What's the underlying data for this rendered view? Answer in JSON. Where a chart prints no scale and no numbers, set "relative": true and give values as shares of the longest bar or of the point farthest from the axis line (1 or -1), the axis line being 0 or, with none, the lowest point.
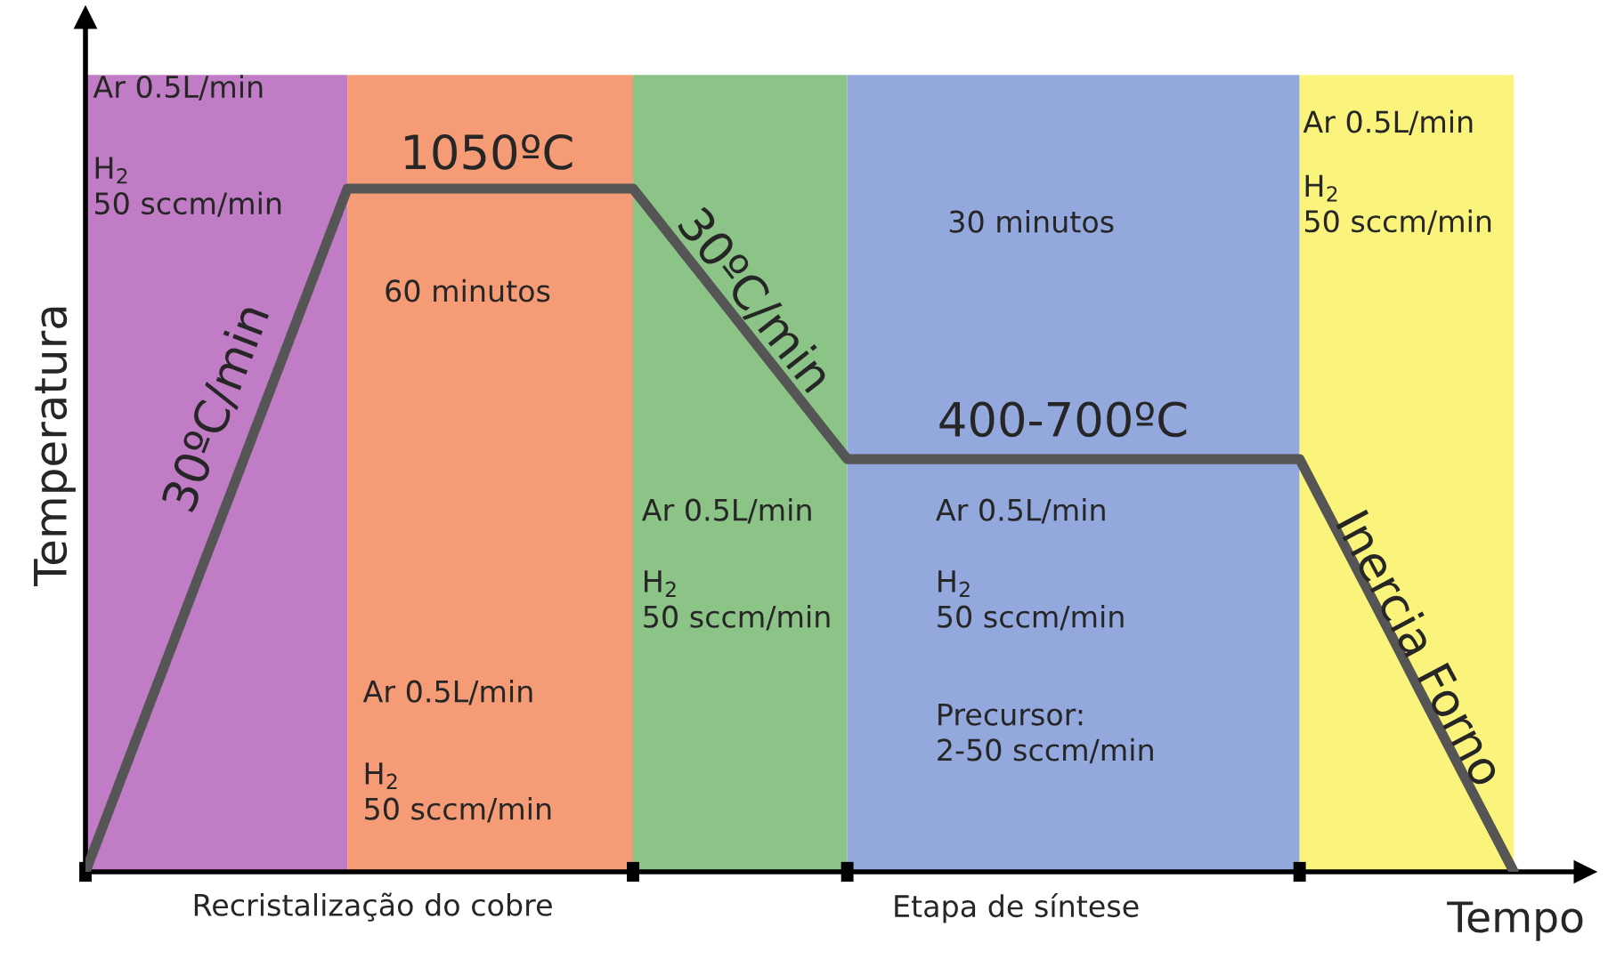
{
  "chart_data": {
    "type": "line",
    "relative": true,
    "xlabel": "Tempo",
    "ylabel": "Temperatura",
    "categories": [
      null,
      null,
      null,
      null,
      null,
      null,
      null,
      null,
      null,
      null,
      null,
      null,
      null,
      null,
      null,
      null,
      null,
      null,
      null,
      null,
      null,
      null,
      null,
      null,
      null,
      null,
      null,
      null,
      null,
      null,
      null,
      null,
      null,
      null,
      null,
      null,
      null,
      null,
      null,
      null,
      null,
      null,
      null,
      null,
      null,
      null,
      null,
      null,
      null,
      null,
      null,
      null,
      null,
      null,
      null,
      null,
      null,
      null,
      null,
      null,
      null
    ],
    "series": [
      {
        "color": "#555555",
        "values": [
          0,
          0.091,
          0.182,
          0.273,
          0.364,
          0.455,
          0.545,
          0.636,
          0.727,
          0.818,
          0.909,
          1,
          1,
          1,
          1,
          1,
          1,
          1,
          1,
          1,
          1,
          1,
          1,
          1,
          0.956,
          0.912,
          0.868,
          0.824,
          0.78,
          0.736,
          0.692,
          0.648,
          0.604,
          0.604,
          0.604,
          0.604,
          0.604,
          0.604,
          0.604,
          0.604,
          0.604,
          0.604,
          0.604,
          0.604,
          0.604,
          0.604,
          0.604,
          0.604,
          0.604,
          0.604,
          0.604,
          0.604,
          0.537,
          0.47,
          0.403,
          0.336,
          0.268,
          0.201,
          0.134,
          0.067,
          0
        ]
      }
    ],
    "legend": false,
    "marker": "none",
    "line_style": "solid",
    "annotations": [
      "Ar 0.5L/min",
      "H$_{2}$\n50 sccm/min",
      "30ºC/min",
      "1050ºC",
      "60 minutos",
      "Ar 0.5L/min",
      "H$_{2}$\n50 sccm/min",
      "30ºC/min",
      "Ar 0.5L/min",
      "H$_{2}$\n50 sccm/min",
      "30 minutos",
      "400-700ºC",
      "Ar 0.5L/min",
      "H$_{2}$\n50 sccm/min",
      "Precursor:\n2-50 sccm/min",
      "Ar 0.5L/min",
      "H$_{2}$\n50 sccm/min",
      "Inercia Forno",
      "Recristalização do cobre",
      "Etapa de síntese"
    ]
  }
}
